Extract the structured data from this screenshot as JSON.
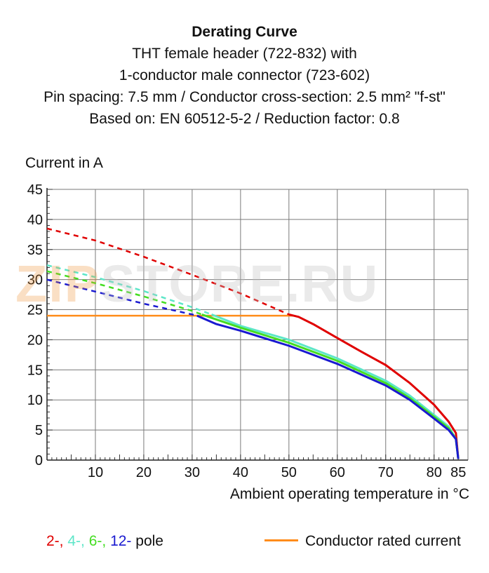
{
  "title_lines": [
    "Derating Curve",
    "THT female header (722-832) with",
    "1-conductor male connector  (723-602)",
    "Pin spacing: 7.5 mm / Conductor cross-section: 2.5 mm² \"f-st\"",
    "Based on: EN 60512-5-2 / Reduction factor: 0.8"
  ],
  "watermark": {
    "zip": "ZIP",
    "rest": "STORE.RU"
  },
  "chart_data": {
    "type": "line",
    "xlabel": "Ambient operating temperature in °C",
    "ylabel": "Current in A",
    "xlim": [
      0,
      87
    ],
    "ylim": [
      0,
      45
    ],
    "x_ticks": [
      10,
      20,
      30,
      40,
      50,
      60,
      70,
      80,
      85
    ],
    "y_ticks": [
      0,
      5,
      10,
      15,
      20,
      25,
      30,
      35,
      40,
      45
    ],
    "grid": true,
    "series": [
      {
        "name": "2-",
        "color": "#e00000",
        "dashed": [
          [
            0,
            38.5
          ],
          [
            10,
            36.5
          ],
          [
            20,
            33.8
          ],
          [
            30,
            30.8
          ],
          [
            40,
            27.7
          ],
          [
            50,
            24.2
          ]
        ],
        "solid": [
          [
            50,
            24.2
          ],
          [
            52,
            23.8
          ],
          [
            55,
            22.6
          ],
          [
            60,
            20.3
          ],
          [
            65,
            18.0
          ],
          [
            70,
            15.8
          ],
          [
            75,
            12.8
          ],
          [
            80,
            9.2
          ],
          [
            83,
            6.4
          ],
          [
            84.5,
            4.5
          ],
          [
            85,
            0.2
          ]
        ]
      },
      {
        "name": "4-",
        "color": "#5de6c8",
        "dashed": [
          [
            0,
            32.4
          ],
          [
            10,
            30.4
          ],
          [
            20,
            28.1
          ],
          [
            30,
            25.4
          ],
          [
            34,
            24.2
          ]
        ],
        "solid": [
          [
            34,
            24.2
          ],
          [
            40,
            22.3
          ],
          [
            50,
            20.0
          ],
          [
            60,
            16.9
          ],
          [
            70,
            13.2
          ],
          [
            75,
            10.7
          ],
          [
            80,
            7.5
          ],
          [
            83,
            5.6
          ],
          [
            84.5,
            3.5
          ],
          [
            85,
            0.2
          ]
        ]
      },
      {
        "name": "6-",
        "color": "#44dd22",
        "dashed": [
          [
            0,
            31.4
          ],
          [
            10,
            29.4
          ],
          [
            20,
            27.2
          ],
          [
            30,
            24.8
          ],
          [
            32,
            24.2
          ]
        ],
        "solid": [
          [
            32,
            24.2
          ],
          [
            40,
            22.0
          ],
          [
            50,
            19.5
          ],
          [
            60,
            16.5
          ],
          [
            70,
            12.8
          ],
          [
            75,
            10.3
          ],
          [
            80,
            7.2
          ],
          [
            83,
            5.3
          ],
          [
            84.5,
            3.5
          ],
          [
            85,
            0.2
          ]
        ]
      },
      {
        "name": "12-",
        "color": "#1a1ad0",
        "dashed": [
          [
            0,
            30.0
          ],
          [
            10,
            28.0
          ],
          [
            20,
            26.0
          ],
          [
            30,
            24.2
          ],
          [
            31,
            24.0
          ]
        ],
        "solid": [
          [
            31,
            24.0
          ],
          [
            35,
            22.6
          ],
          [
            40,
            21.5
          ],
          [
            50,
            19.0
          ],
          [
            60,
            16.0
          ],
          [
            70,
            12.4
          ],
          [
            75,
            10.0
          ],
          [
            80,
            6.9
          ],
          [
            83,
            5.0
          ],
          [
            84.5,
            3.5
          ],
          [
            85,
            0.2
          ]
        ]
      },
      {
        "name": "Conductor rated current",
        "color": "#ff8c1a",
        "solid": [
          [
            0,
            24.0
          ],
          [
            51,
            24.0
          ]
        ]
      }
    ]
  },
  "legend": {
    "poles": [
      {
        "label": "2-,",
        "color": "#e00000"
      },
      {
        "label": "4-,",
        "color": "#5de6c8"
      },
      {
        "label": "6-,",
        "color": "#44dd22"
      },
      {
        "label": "12-",
        "color": "#1a1ad0"
      }
    ],
    "pole_suffix": "pole",
    "rated_label": "Conductor rated current",
    "rated_color": "#ff8c1a"
  }
}
